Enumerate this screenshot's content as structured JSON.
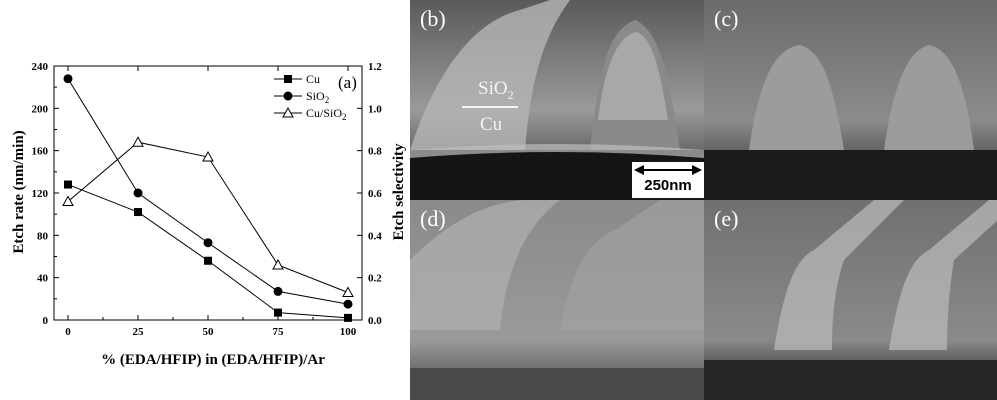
{
  "chart_data": {
    "type": "line",
    "panel_label": "(a)",
    "xlabel": "% (EDA/HFIP) in (EDA/HFIP)/Ar",
    "ylabel_left": "Etch rate (nm/min)",
    "ylabel_right": "Etch selectivity",
    "x": [
      0,
      25,
      50,
      75,
      100
    ],
    "x_ticks": [
      "0",
      "25",
      "50",
      "75",
      "100"
    ],
    "y_left_ticks": [
      "0",
      "40",
      "80",
      "120",
      "160",
      "200",
      "240"
    ],
    "y_right_ticks": [
      "0.0",
      "0.2",
      "0.4",
      "0.6",
      "0.8",
      "1.0",
      "1.2"
    ],
    "ylim_left": [
      0,
      240
    ],
    "ylim_right": [
      0,
      1.2
    ],
    "xlim": [
      -5,
      105
    ],
    "grid": false,
    "legend_position": "top-right",
    "series": [
      {
        "name": "Cu",
        "axis": "left",
        "marker": "filled-square",
        "values": [
          128,
          102,
          56,
          7,
          2
        ]
      },
      {
        "name": "SiO2",
        "axis": "left",
        "marker": "filled-circle",
        "values": [
          228,
          120,
          73,
          27,
          15
        ]
      },
      {
        "name": "Cu/SiO2",
        "axis": "right",
        "marker": "open-triangle",
        "values": [
          0.56,
          0.84,
          0.77,
          0.26,
          0.13
        ]
      }
    ]
  },
  "images": {
    "b": {
      "label": "(b)",
      "layer_top": "SiO2",
      "layer_bottom": "Cu",
      "scale_bar": "250nm"
    },
    "c": {
      "label": "(c)"
    },
    "d": {
      "label": "(d)"
    },
    "e": {
      "label": "(e)"
    }
  },
  "colors": {
    "line": "#000000",
    "background": "#ffffff"
  }
}
